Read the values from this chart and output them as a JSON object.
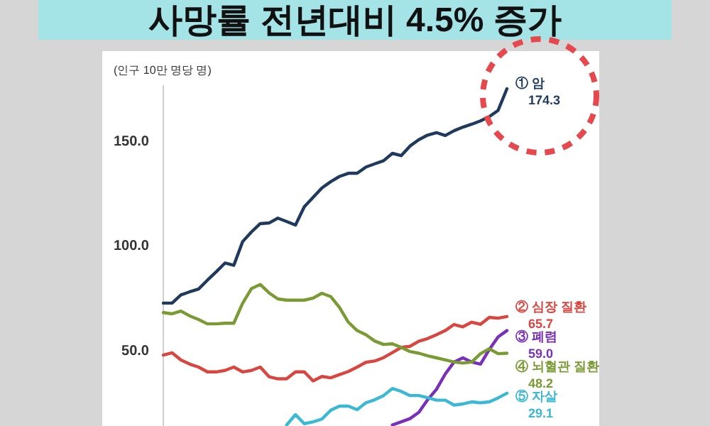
{
  "chart_data": {
    "type": "line",
    "title": "사망률 전년대비 4.5% 증가",
    "ylabel": "(인구 10만 명당 명)",
    "categories": [
      null,
      null,
      null,
      null,
      null,
      null,
      null,
      null,
      null,
      null,
      null,
      null,
      null,
      null,
      null,
      null,
      null,
      null,
      null,
      null,
      null,
      null,
      null,
      null,
      null,
      null,
      null,
      null,
      null,
      null,
      null,
      null,
      null,
      null,
      null,
      null,
      null,
      null,
      null,
      null
    ],
    "ylim": [
      13.5,
      176
    ],
    "yticks": [
      {
        "value": 50,
        "label": "50.0"
      },
      {
        "value": 100,
        "label": "100.0"
      },
      {
        "value": 150,
        "label": "150.0"
      }
    ],
    "tick_labels": "y",
    "grid": false,
    "marker": "none",
    "line_style": "solid",
    "series": [
      {
        "name": "① 암",
        "color": "#1f3a5c",
        "values": [
          72.1,
          72.1,
          76,
          77.5,
          78.8,
          83,
          87,
          91.2,
          90.1,
          101.4,
          106,
          110,
          110.3,
          112.6,
          111,
          109.3,
          118,
          122.5,
          127,
          130,
          132.5,
          134,
          134,
          137,
          138.5,
          140,
          143.5,
          142.4,
          147,
          150,
          152.2,
          153.4,
          152,
          154.3,
          156,
          157.4,
          159,
          161,
          164,
          174.3
        ],
        "value_labels": [
          null,
          null,
          null,
          null,
          null,
          null,
          null,
          null,
          null,
          null,
          null,
          null,
          null,
          null,
          null,
          null,
          null,
          null,
          null,
          null,
          null,
          null,
          null,
          null,
          null,
          null,
          null,
          null,
          null,
          null,
          null,
          null,
          null,
          null,
          null,
          null,
          null,
          null,
          null,
          "174.3"
        ]
      },
      {
        "name": "② 심장 질환",
        "color": "#d9453f",
        "values": [
          47.3,
          48.4,
          45,
          43,
          41.6,
          39.3,
          39.3,
          40,
          41.6,
          39.3,
          40,
          41.6,
          37,
          36,
          36,
          39.3,
          39.3,
          35,
          37.1,
          36.5,
          38,
          39.5,
          41.6,
          43.9,
          44.5,
          46.1,
          48.5,
          51,
          51.5,
          53.9,
          55.2,
          57,
          59,
          61.9,
          60.8,
          63,
          62,
          65.3,
          64.9,
          65.7
        ],
        "value_labels": [
          null,
          null,
          null,
          null,
          null,
          null,
          null,
          null,
          null,
          null,
          null,
          null,
          null,
          null,
          null,
          null,
          null,
          null,
          null,
          null,
          null,
          null,
          null,
          null,
          null,
          null,
          null,
          null,
          null,
          null,
          null,
          null,
          null,
          null,
          null,
          null,
          null,
          null,
          null,
          "65.7"
        ]
      },
      {
        "name": "③ 폐렴",
        "color": "#7a2fb8",
        "values": [
          null,
          null,
          null,
          null,
          null,
          null,
          null,
          null,
          null,
          null,
          null,
          null,
          null,
          null,
          null,
          null,
          null,
          null,
          null,
          null,
          null,
          null,
          null,
          null,
          null,
          null,
          14,
          15.5,
          17,
          20,
          26,
          31,
          38.3,
          44,
          46,
          44,
          43,
          50,
          56,
          59
        ],
        "value_labels": [
          null,
          null,
          null,
          null,
          null,
          null,
          null,
          null,
          null,
          null,
          null,
          null,
          null,
          null,
          null,
          null,
          null,
          null,
          null,
          null,
          null,
          null,
          null,
          null,
          null,
          null,
          null,
          null,
          null,
          null,
          null,
          null,
          null,
          null,
          null,
          null,
          null,
          null,
          null,
          "59.0"
        ]
      },
      {
        "name": "④ 뇌혈관 질환",
        "color": "#7a9a34",
        "values": [
          67.6,
          67,
          68.3,
          66,
          64.3,
          62.2,
          62.2,
          62.5,
          62.5,
          72,
          79,
          81,
          77,
          74.1,
          73.5,
          73.5,
          73.5,
          74.5,
          76.8,
          75.2,
          70,
          63,
          59,
          57,
          54,
          52.4,
          52.7,
          51,
          49,
          48.2,
          47,
          46,
          45,
          44,
          43.5,
          44,
          48,
          50.3,
          48,
          48.2
        ],
        "value_labels": [
          null,
          null,
          null,
          null,
          null,
          null,
          null,
          null,
          null,
          null,
          null,
          null,
          null,
          null,
          null,
          null,
          null,
          null,
          null,
          null,
          null,
          null,
          null,
          null,
          null,
          null,
          null,
          null,
          null,
          null,
          null,
          null,
          null,
          null,
          null,
          null,
          null,
          null,
          null,
          "48.2"
        ]
      },
      {
        "name": "⑤ 자살",
        "color": "#3bb8d4",
        "values": [
          null,
          null,
          null,
          null,
          null,
          null,
          null,
          null,
          null,
          null,
          null,
          null,
          null,
          null,
          14,
          18.9,
          14.6,
          15.5,
          16.8,
          21,
          23,
          23,
          21.3,
          24.6,
          26,
          28,
          31.4,
          30,
          28,
          28,
          27,
          25.8,
          25.8,
          23.5,
          24,
          25,
          24.6,
          25,
          26.9,
          29.1
        ],
        "value_labels": [
          null,
          null,
          null,
          null,
          null,
          null,
          null,
          null,
          null,
          null,
          null,
          null,
          null,
          null,
          null,
          null,
          null,
          null,
          null,
          null,
          null,
          null,
          null,
          null,
          null,
          null,
          null,
          null,
          null,
          null,
          null,
          null,
          null,
          null,
          null,
          null,
          null,
          null,
          null,
          "29.1"
        ]
      }
    ]
  }
}
